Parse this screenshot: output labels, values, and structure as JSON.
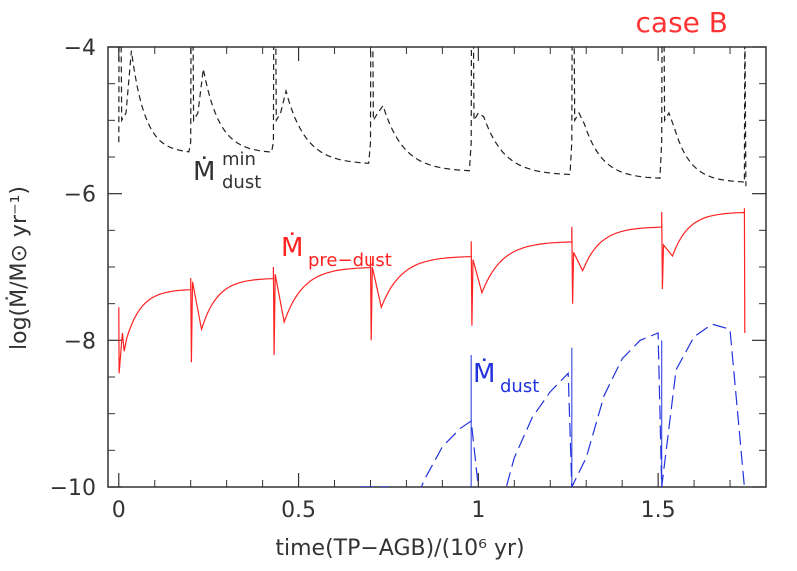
{
  "chart_data": {
    "type": "line",
    "title": "case B",
    "xlabel": "time(TP−AGB)/(10⁶ yr)",
    "ylabel": "log(Ṁ/M⊙ yr⁻¹)",
    "xlim": [
      -0.03,
      1.8
    ],
    "ylim": [
      -10,
      -4
    ],
    "x_ticks": [
      0,
      0.5,
      1,
      1.5
    ],
    "x_tick_labels": [
      "0",
      "0.5",
      "1",
      "1.5"
    ],
    "y_ticks": [
      -10,
      -8,
      -6,
      -4
    ],
    "y_tick_labels": [
      "−10",
      "−8",
      "−6",
      "−4"
    ],
    "grid": false,
    "pulse_times": [
      0.0,
      0.2,
      0.43,
      0.7,
      0.98,
      1.26,
      1.51,
      1.74
    ],
    "colors": {
      "min_dust": "#222222",
      "pre_dust": "#ff2222",
      "dust": "#2233dd",
      "title": "#ff3333"
    },
    "series": [
      {
        "name": "Mdot_min_dust",
        "label_main": "Ṁ",
        "label_sub": "dust",
        "label_sup": "min",
        "style": "dashed",
        "peaks": [
          -4.05,
          -4.3,
          -4.6,
          -4.8,
          -4.95,
          -5.05,
          -5.1
        ],
        "troughs": [
          -5.45,
          -5.45,
          -5.6,
          -5.7,
          -5.75,
          -5.8,
          -5.85
        ]
      },
      {
        "name": "Mdot_pre_dust",
        "label_main": "Ṁ",
        "label_sub": "pre−dust",
        "style": "solid",
        "dips": [
          -8.4,
          -8.3,
          -8.2,
          -8.0,
          -7.8,
          -7.5,
          -7.3
        ],
        "plateaus": [
          -7.3,
          -7.15,
          -7.0,
          -6.85,
          -6.65,
          -6.45,
          -6.25
        ]
      },
      {
        "name": "Mdot_dust",
        "label_main": "Ṁ",
        "label_sub": "dust",
        "style": "long-dashed",
        "x": [
          0.67,
          0.7,
          0.75,
          0.8,
          0.85,
          0.9,
          0.95,
          0.98,
          1.0,
          1.05,
          1.1,
          1.15,
          1.2,
          1.25,
          1.26,
          1.3,
          1.35,
          1.4,
          1.45,
          1.5,
          1.51,
          1.55,
          1.6,
          1.65,
          1.7,
          1.74
        ],
        "y": [
          -10,
          -10,
          -10,
          -10.5,
          -9.9,
          -9.45,
          -9.2,
          -9.1,
          -10,
          -10.5,
          -9.6,
          -9.05,
          -8.7,
          -8.45,
          -10,
          -9.6,
          -8.75,
          -8.25,
          -8.0,
          -7.9,
          -10,
          -8.4,
          -7.95,
          -7.78,
          -7.85,
          -10
        ]
      }
    ]
  }
}
